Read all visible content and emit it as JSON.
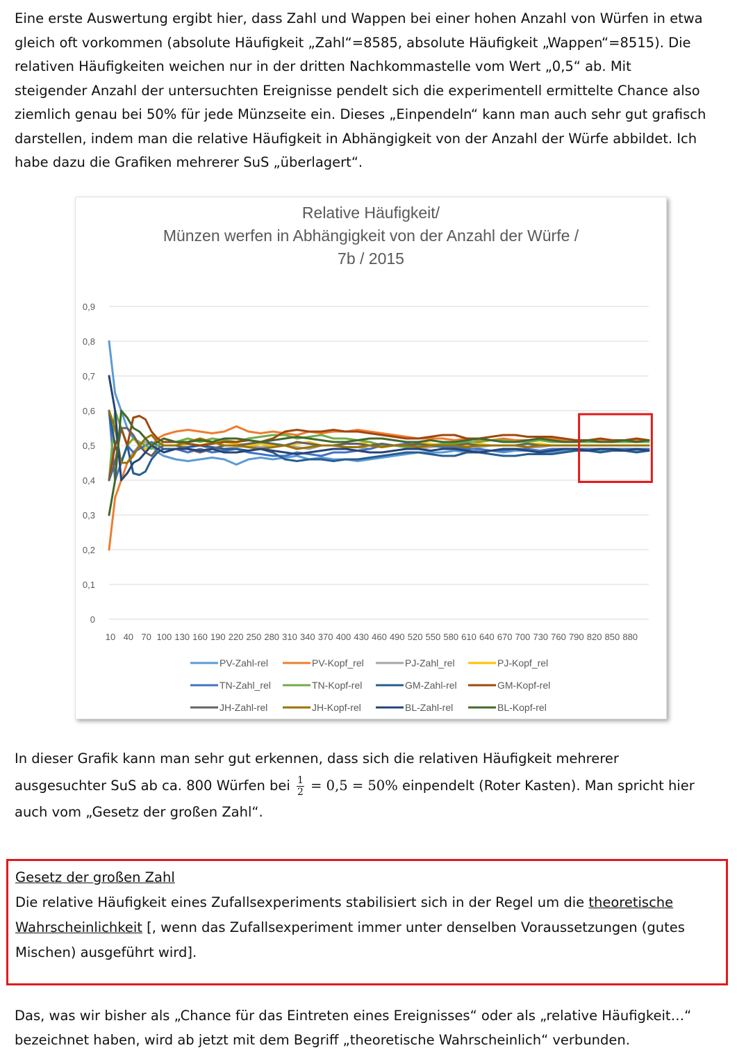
{
  "intro": {
    "lines": [
      "Eine erste Auswertung ergibt hier, dass Zahl und Wappen bei einer hohen Anzahl von Würfen in etwa",
      "gleich oft vorkommen (absolute Häufigkeit „Zahl“=8585, absolute Häufigkeit „Wappen“=8515). Die",
      "relativen Häufigkeiten weichen nur in der dritten Nachkommastelle vom Wert „0,5“ ab. Mit",
      "steigender Anzahl der untersuchten Ereignisse pendelt sich die experimentell ermittelte Chance also",
      "ziemlich genau bei 50% für jede Münzseite ein. Dieses „Einpendeln“ kann man auch sehr gut grafisch",
      "darstellen, indem man die relative Häufigkeit in Abhängigkeit von der Anzahl der Würfe abbildet. Ich",
      "habe dazu die Grafiken mehrerer SuS „überlagert“."
    ]
  },
  "chart_data": {
    "type": "line",
    "title": [
      "Relative Häufigkeit/",
      "Münzen werfen in Abhängigkeit von der Anzahl der Würfe /",
      "7b / 2015"
    ],
    "ylim": [
      0,
      0.9
    ],
    "y_ticks": [
      "0",
      "0,1",
      "0,2",
      "0,3",
      "0,4",
      "0,5",
      "0,6",
      "0,7",
      "0,8",
      "0,9"
    ],
    "x_ticks": [
      "10",
      "40",
      "70",
      "100",
      "130",
      "160",
      "190",
      "220",
      "250",
      "280",
      "310",
      "340",
      "370",
      "400",
      "430",
      "460",
      "490",
      "520",
      "550",
      "580",
      "610",
      "640",
      "670",
      "700",
      "730",
      "760",
      "790",
      "820",
      "850",
      "880"
    ],
    "grid": true,
    "legend_position": "bottom",
    "x": [
      10,
      20,
      30,
      40,
      50,
      60,
      70,
      80,
      90,
      100,
      120,
      140,
      160,
      180,
      200,
      220,
      240,
      260,
      280,
      300,
      320,
      340,
      360,
      380,
      400,
      420,
      440,
      460,
      480,
      500,
      520,
      540,
      560,
      580,
      600,
      620,
      640,
      660,
      680,
      700,
      720,
      740,
      760,
      780,
      800,
      820,
      840,
      860,
      880,
      900
    ],
    "series": [
      {
        "name": "PV-Zahl-rel",
        "color": "#5B9BD5",
        "values": [
          0.8,
          0.65,
          0.6,
          0.55,
          0.52,
          0.5,
          0.49,
          0.5,
          0.48,
          0.47,
          0.46,
          0.455,
          0.46,
          0.465,
          0.46,
          0.445,
          0.46,
          0.465,
          0.46,
          0.465,
          0.47,
          0.46,
          0.465,
          0.46,
          0.46,
          0.455,
          0.46,
          0.465,
          0.47,
          0.475,
          0.48,
          0.48,
          0.48,
          0.485,
          0.48,
          0.485,
          0.485,
          0.48,
          0.485,
          0.485,
          0.48,
          0.48,
          0.485,
          0.485,
          0.485,
          0.485,
          0.485,
          0.485,
          0.485,
          0.485
        ]
      },
      {
        "name": "PV-Kopf_rel",
        "color": "#ED7D31",
        "values": [
          0.2,
          0.35,
          0.4,
          0.45,
          0.48,
          0.5,
          0.51,
          0.5,
          0.52,
          0.53,
          0.54,
          0.545,
          0.54,
          0.535,
          0.54,
          0.555,
          0.54,
          0.535,
          0.54,
          0.535,
          0.53,
          0.54,
          0.535,
          0.54,
          0.54,
          0.545,
          0.54,
          0.535,
          0.53,
          0.525,
          0.52,
          0.52,
          0.52,
          0.515,
          0.52,
          0.515,
          0.515,
          0.52,
          0.515,
          0.515,
          0.52,
          0.52,
          0.515,
          0.515,
          0.515,
          0.515,
          0.515,
          0.515,
          0.515,
          0.515
        ]
      },
      {
        "name": "PJ-Zahl_rel",
        "color": "#A5A5A5",
        "values": [
          0.4,
          0.5,
          0.55,
          0.5,
          0.48,
          0.5,
          0.51,
          0.5,
          0.49,
          0.5,
          0.5,
          0.495,
          0.5,
          0.49,
          0.49,
          0.495,
          0.5,
          0.495,
          0.5,
          0.5,
          0.495,
          0.49,
          0.5,
          0.5,
          0.495,
          0.495,
          0.49,
          0.5,
          0.5,
          0.495,
          0.49,
          0.495,
          0.5,
          0.5,
          0.5,
          0.495,
          0.5,
          0.5,
          0.5,
          0.495,
          0.495,
          0.5,
          0.5,
          0.5,
          0.5,
          0.5,
          0.5,
          0.5,
          0.5,
          0.5
        ]
      },
      {
        "name": "PJ-Kopf_rel",
        "color": "#FFC000",
        "values": [
          0.6,
          0.5,
          0.45,
          0.5,
          0.52,
          0.5,
          0.49,
          0.5,
          0.51,
          0.5,
          0.5,
          0.505,
          0.5,
          0.51,
          0.51,
          0.505,
          0.5,
          0.505,
          0.5,
          0.5,
          0.505,
          0.51,
          0.5,
          0.5,
          0.505,
          0.505,
          0.51,
          0.5,
          0.5,
          0.505,
          0.51,
          0.505,
          0.5,
          0.5,
          0.5,
          0.505,
          0.5,
          0.5,
          0.5,
          0.505,
          0.505,
          0.5,
          0.5,
          0.5,
          0.5,
          0.5,
          0.5,
          0.5,
          0.5,
          0.5
        ]
      },
      {
        "name": "TN-Zahl_rel",
        "color": "#4472C4",
        "values": [
          0.6,
          0.4,
          0.45,
          0.5,
          0.48,
          0.49,
          0.5,
          0.51,
          0.5,
          0.49,
          0.49,
          0.48,
          0.49,
          0.48,
          0.485,
          0.49,
          0.48,
          0.475,
          0.47,
          0.47,
          0.48,
          0.475,
          0.47,
          0.48,
          0.48,
          0.485,
          0.49,
          0.5,
          0.5,
          0.505,
          0.5,
          0.5,
          0.495,
          0.495,
          0.49,
          0.49,
          0.485,
          0.485,
          0.49,
          0.49,
          0.485,
          0.49,
          0.49,
          0.49,
          0.49,
          0.49,
          0.49,
          0.49,
          0.49,
          0.49
        ]
      },
      {
        "name": "TN-Kopf-rel",
        "color": "#70AD47",
        "values": [
          0.4,
          0.6,
          0.55,
          0.5,
          0.52,
          0.51,
          0.5,
          0.49,
          0.5,
          0.51,
          0.51,
          0.52,
          0.51,
          0.52,
          0.515,
          0.51,
          0.52,
          0.525,
          0.53,
          0.53,
          0.52,
          0.525,
          0.53,
          0.52,
          0.52,
          0.515,
          0.51,
          0.5,
          0.5,
          0.495,
          0.5,
          0.5,
          0.505,
          0.505,
          0.51,
          0.51,
          0.515,
          0.515,
          0.51,
          0.51,
          0.515,
          0.51,
          0.51,
          0.51,
          0.51,
          0.51,
          0.51,
          0.51,
          0.51,
          0.51
        ]
      },
      {
        "name": "GM-Zahl-rel",
        "color": "#255E91",
        "values": [
          0.6,
          0.5,
          0.45,
          0.5,
          0.42,
          0.415,
          0.425,
          0.46,
          0.48,
          0.49,
          0.49,
          0.495,
          0.5,
          0.495,
          0.49,
          0.49,
          0.485,
          0.49,
          0.48,
          0.46,
          0.455,
          0.46,
          0.46,
          0.455,
          0.46,
          0.46,
          0.465,
          0.47,
          0.475,
          0.48,
          0.48,
          0.475,
          0.47,
          0.47,
          0.48,
          0.48,
          0.475,
          0.47,
          0.47,
          0.475,
          0.475,
          0.475,
          0.48,
          0.485,
          0.485,
          0.48,
          0.485,
          0.485,
          0.48,
          0.485
        ]
      },
      {
        "name": "GM-Kopf-rel",
        "color": "#9E480E",
        "values": [
          0.4,
          0.5,
          0.55,
          0.5,
          0.58,
          0.585,
          0.575,
          0.54,
          0.52,
          0.51,
          0.51,
          0.505,
          0.5,
          0.505,
          0.51,
          0.51,
          0.515,
          0.51,
          0.52,
          0.54,
          0.545,
          0.54,
          0.54,
          0.545,
          0.54,
          0.54,
          0.535,
          0.53,
          0.525,
          0.52,
          0.52,
          0.525,
          0.53,
          0.53,
          0.52,
          0.52,
          0.525,
          0.53,
          0.53,
          0.525,
          0.525,
          0.525,
          0.52,
          0.515,
          0.515,
          0.52,
          0.515,
          0.515,
          0.52,
          0.515
        ]
      },
      {
        "name": "JH-Zahl-rel",
        "color": "#636363",
        "values": [
          0.4,
          0.45,
          0.55,
          0.55,
          0.53,
          0.5,
          0.48,
          0.47,
          0.49,
          0.5,
          0.5,
          0.49,
          0.48,
          0.49,
          0.5,
          0.5,
          0.505,
          0.51,
          0.505,
          0.5,
          0.51,
          0.505,
          0.5,
          0.5,
          0.505,
          0.505,
          0.5,
          0.505,
          0.5,
          0.5,
          0.505,
          0.5,
          0.5,
          0.5,
          0.505,
          0.5,
          0.5,
          0.5,
          0.5,
          0.505,
          0.5,
          0.5,
          0.5,
          0.5,
          0.5,
          0.5,
          0.5,
          0.5,
          0.5,
          0.5
        ]
      },
      {
        "name": "JH-Kopf-rel",
        "color": "#997300",
        "values": [
          0.6,
          0.55,
          0.45,
          0.45,
          0.47,
          0.5,
          0.52,
          0.53,
          0.51,
          0.5,
          0.5,
          0.51,
          0.52,
          0.51,
          0.5,
          0.5,
          0.495,
          0.49,
          0.495,
          0.5,
          0.49,
          0.495,
          0.5,
          0.5,
          0.495,
          0.495,
          0.5,
          0.495,
          0.5,
          0.5,
          0.495,
          0.5,
          0.5,
          0.5,
          0.495,
          0.5,
          0.5,
          0.5,
          0.5,
          0.495,
          0.5,
          0.5,
          0.5,
          0.5,
          0.5,
          0.5,
          0.5,
          0.5,
          0.5,
          0.5
        ]
      },
      {
        "name": "BL-Zahl-rel",
        "color": "#264478",
        "values": [
          0.7,
          0.6,
          0.4,
          0.42,
          0.45,
          0.46,
          0.48,
          0.5,
          0.49,
          0.48,
          0.49,
          0.49,
          0.485,
          0.49,
          0.48,
          0.48,
          0.485,
          0.49,
          0.485,
          0.48,
          0.475,
          0.48,
          0.485,
          0.49,
          0.49,
          0.485,
          0.48,
          0.48,
          0.485,
          0.49,
          0.49,
          0.485,
          0.49,
          0.49,
          0.485,
          0.48,
          0.485,
          0.49,
          0.49,
          0.485,
          0.48,
          0.485,
          0.49,
          0.49,
          0.485,
          0.49,
          0.49,
          0.485,
          0.49,
          0.485
        ]
      },
      {
        "name": "BL-Kopf-rel",
        "color": "#43682B",
        "values": [
          0.3,
          0.4,
          0.6,
          0.58,
          0.55,
          0.54,
          0.52,
          0.5,
          0.51,
          0.52,
          0.51,
          0.51,
          0.515,
          0.51,
          0.52,
          0.52,
          0.515,
          0.51,
          0.515,
          0.52,
          0.525,
          0.52,
          0.515,
          0.51,
          0.51,
          0.515,
          0.52,
          0.52,
          0.515,
          0.51,
          0.51,
          0.515,
          0.51,
          0.51,
          0.515,
          0.52,
          0.515,
          0.51,
          0.51,
          0.515,
          0.52,
          0.515,
          0.51,
          0.51,
          0.515,
          0.51,
          0.51,
          0.515,
          0.51,
          0.515
        ]
      }
    ],
    "annotation": {
      "type": "red-box",
      "x_range": [
        785,
        905
      ],
      "y_range": [
        0.395,
        0.59
      ]
    }
  },
  "after_chart": {
    "line1": "In dieser Grafik kann man sehr gut erkennen, dass sich die relativen Häufigkeit mehrerer",
    "line2_before": "ausgesuchter SuS ab ca. 800 Würfen bei ",
    "frac_num": "1",
    "frac_den": "2",
    "math_rest": " = 0,5 = 50%",
    "line2_after": " einpendelt (Roter Kasten). Man spricht hier",
    "line3": "auch vom „Gesetz der großen Zahl“."
  },
  "law": {
    "title": "Gesetz der großen Zahl",
    "text_before": "Die relative Häufigkeit eines Zufallsexperiments stabilisiert sich in der Regel um die ",
    "link_part1": "theoretische",
    "link_part2": "Wahrscheinlichkeit",
    "text_after": " [, wenn das Zufallsexperiment immer unter denselben Voraussetzungen (gutes Mischen) ausgeführt wird].",
    "border_color": "#e01b1b"
  },
  "closing": {
    "line1": "Das, was wir bisher als „Chance für das Eintreten eines Ereignisses“ oder als „relative Häufigkeit…“",
    "line2": "bezeichnet haben, wird ab jetzt mit dem Begriff „theoretische Wahrscheinlich“ verbunden."
  }
}
